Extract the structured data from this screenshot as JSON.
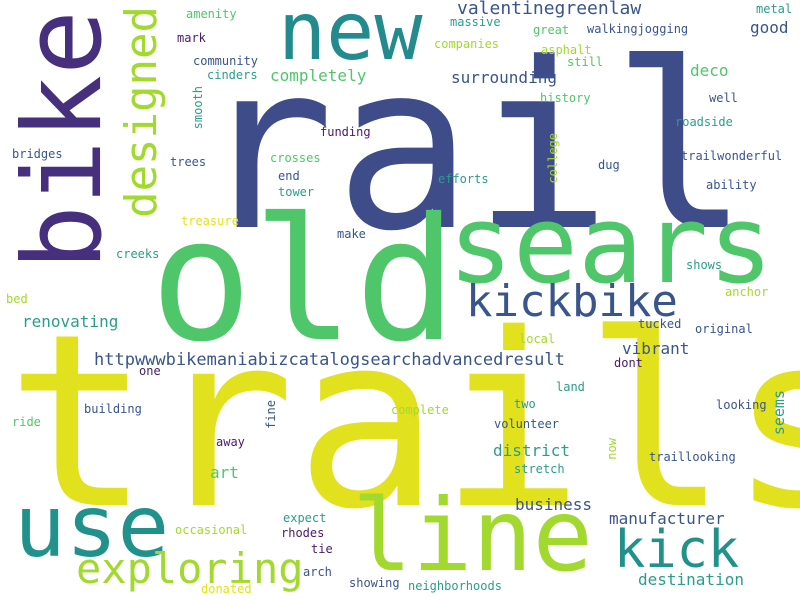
{
  "palette": {
    "yellow": "#e2e11d",
    "lime": "#a2d92e",
    "green": "#4fc66a",
    "teal": "#2a9d8c",
    "tealdark": "#238a8d",
    "blue": "#39558c",
    "indigo": "#46307e",
    "purple": "#481a6c"
  },
  "words": [
    {
      "text": "rail",
      "color": "#3e4c8a"
    },
    {
      "text": "trails",
      "color": "#e2e11d"
    },
    {
      "text": "old",
      "color": "#4fc66a"
    },
    {
      "text": "sears",
      "color": "#4fc66a"
    },
    {
      "text": "bike",
      "color": "#46307e"
    },
    {
      "text": "new",
      "color": "#238a8d"
    },
    {
      "text": "line",
      "color": "#a2d92e"
    },
    {
      "text": "use",
      "color": "#21918c"
    },
    {
      "text": "designed",
      "color": "#a2d92e"
    },
    {
      "text": "kickbike",
      "color": "#39558c"
    },
    {
      "text": "kick",
      "color": "#21918c"
    },
    {
      "text": "exploring",
      "color": "#a2d92e"
    },
    {
      "text": "httpwwwbikemaniabizcatalogsearchadvancedresult",
      "color": "#39558c"
    },
    {
      "text": "valentinegreenlaw",
      "color": "#39558c"
    },
    {
      "text": "surrounding",
      "color": "#39558c"
    },
    {
      "text": "completely",
      "color": "#4fc66a"
    },
    {
      "text": "renovating",
      "color": "#2a9d8c"
    },
    {
      "text": "deco",
      "color": "#4fc66a"
    },
    {
      "text": "vibrant",
      "color": "#39558c"
    },
    {
      "text": "district",
      "color": "#2a9d8c"
    },
    {
      "text": "art",
      "color": "#4fc66a"
    },
    {
      "text": "business",
      "color": "#39558c"
    },
    {
      "text": "manufacturer",
      "color": "#39558c"
    },
    {
      "text": "destination",
      "color": "#2a9d8c"
    },
    {
      "text": "good",
      "color": "#39558c"
    },
    {
      "text": "seems",
      "color": "#2a9d8c"
    },
    {
      "text": "amenity",
      "color": "#4fc66a"
    },
    {
      "text": "massive",
      "color": "#2a9d8c"
    },
    {
      "text": "metal",
      "color": "#2a9d8c"
    },
    {
      "text": "mark",
      "color": "#481a6c"
    },
    {
      "text": "walkingjogging",
      "color": "#39558c"
    },
    {
      "text": "great",
      "color": "#4fc66a"
    },
    {
      "text": "companies",
      "color": "#a2d92e"
    },
    {
      "text": "asphalt",
      "color": "#a2d92e"
    },
    {
      "text": "still",
      "color": "#4fc66a"
    },
    {
      "text": "community",
      "color": "#39558c"
    },
    {
      "text": "cinders",
      "color": "#2a9d8c"
    },
    {
      "text": "smooth",
      "color": "#2a9d8c"
    },
    {
      "text": "history",
      "color": "#4fc66a"
    },
    {
      "text": "well",
      "color": "#39558c"
    },
    {
      "text": "roadside",
      "color": "#2a9d8c"
    },
    {
      "text": "funding",
      "color": "#481a6c"
    },
    {
      "text": "college",
      "color": "#a2d92e"
    },
    {
      "text": "bridges",
      "color": "#39558c"
    },
    {
      "text": "trees",
      "color": "#39558c"
    },
    {
      "text": "crosses",
      "color": "#4fc66a"
    },
    {
      "text": "dug",
      "color": "#39558c"
    },
    {
      "text": "trailwonderful",
      "color": "#39558c"
    },
    {
      "text": "end",
      "color": "#39558c"
    },
    {
      "text": "efforts",
      "color": "#2a9d8c"
    },
    {
      "text": "tower",
      "color": "#2a9d8c"
    },
    {
      "text": "ability",
      "color": "#39558c"
    },
    {
      "text": "treasure",
      "color": "#e2e11d"
    },
    {
      "text": "make",
      "color": "#39558c"
    },
    {
      "text": "creeks",
      "color": "#2a9d8c"
    },
    {
      "text": "shows",
      "color": "#2a9d8c"
    },
    {
      "text": "anchor",
      "color": "#a2d92e"
    },
    {
      "text": "bed",
      "color": "#a2d92e"
    },
    {
      "text": "tucked",
      "color": "#39558c"
    },
    {
      "text": "original",
      "color": "#39558c"
    },
    {
      "text": "local",
      "color": "#a2d92e"
    },
    {
      "text": "dont",
      "color": "#481a6c"
    },
    {
      "text": "one",
      "color": "#481a6c"
    },
    {
      "text": "land",
      "color": "#2a9d8c"
    },
    {
      "text": "building",
      "color": "#39558c"
    },
    {
      "text": "two",
      "color": "#2a9d8c"
    },
    {
      "text": "complete",
      "color": "#a2d92e"
    },
    {
      "text": "looking",
      "color": "#39558c"
    },
    {
      "text": "ride",
      "color": "#4fc66a"
    },
    {
      "text": "fine",
      "color": "#39558c"
    },
    {
      "text": "volunteer",
      "color": "#39558c"
    },
    {
      "text": "away",
      "color": "#481a6c"
    },
    {
      "text": "now",
      "color": "#a2d92e"
    },
    {
      "text": "traillooking",
      "color": "#39558c"
    },
    {
      "text": "stretch",
      "color": "#2a9d8c"
    },
    {
      "text": "occasional",
      "color": "#a2d92e"
    },
    {
      "text": "expect",
      "color": "#2a9d8c"
    },
    {
      "text": "rhodes",
      "color": "#481a6c"
    },
    {
      "text": "tie",
      "color": "#481a6c"
    },
    {
      "text": "arch",
      "color": "#39558c"
    },
    {
      "text": "showing",
      "color": "#39558c"
    },
    {
      "text": "neighborhoods",
      "color": "#2a9d8c"
    },
    {
      "text": "donated",
      "color": "#e2e11d"
    }
  ]
}
